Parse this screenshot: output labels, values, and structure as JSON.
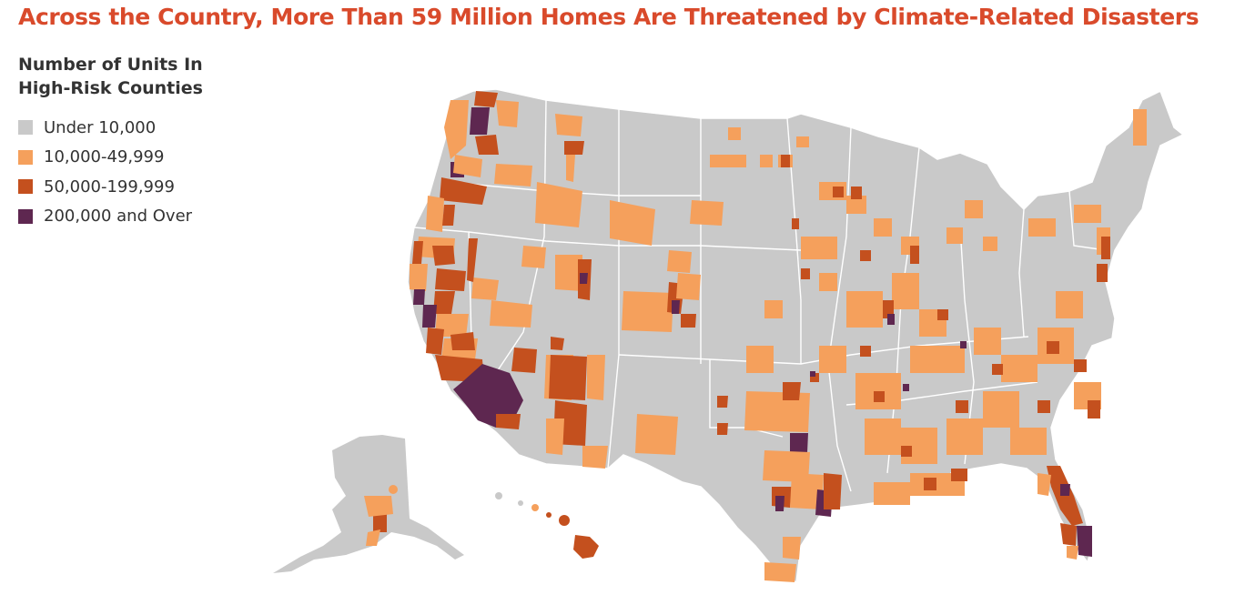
{
  "title": "Across the Country, More Than 59 Million Homes Are Threatened by Climate-Related Disasters",
  "title_color": "#d94a2b",
  "legend": {
    "title_line1": "Number of Units In",
    "title_line2": "High-Risk Counties",
    "items": [
      {
        "label": "Under 10,000",
        "color": "#c9c9c9"
      },
      {
        "label": "10,000-49,999",
        "color": "#f5a05c"
      },
      {
        "label": "50,000-199,999",
        "color": "#c4501e"
      },
      {
        "label": "200,000 and Over",
        "color": "#5e2750"
      }
    ]
  }
}
